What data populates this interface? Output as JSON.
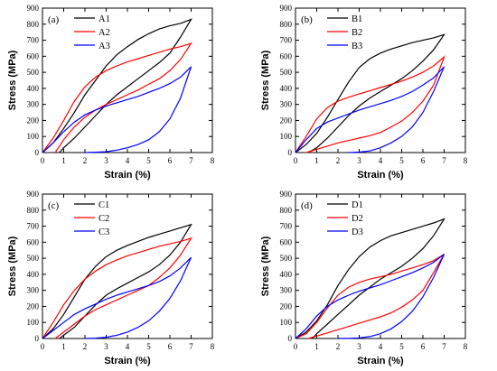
{
  "chart_data": [
    {
      "type": "line",
      "panel_label": "(a)",
      "xlabel": "Strain (%)",
      "ylabel": "Stress (MPa)",
      "xlim": [
        0,
        8
      ],
      "ylim": [
        0,
        900
      ],
      "xticks": [
        0,
        1,
        2,
        3,
        4,
        5,
        6,
        7,
        8
      ],
      "yticks": [
        0,
        100,
        200,
        300,
        400,
        500,
        600,
        700,
        800,
        900
      ],
      "legend": "top-left",
      "series": [
        {
          "name": "A1",
          "color": "#000000",
          "x": [
            0,
            0.5,
            1,
            1.5,
            2,
            2.5,
            3,
            3.5,
            4,
            4.5,
            5,
            5.5,
            6,
            6.5,
            7,
            6.5,
            6,
            5.5,
            5,
            4.5,
            4,
            3.5,
            3,
            2.5,
            2,
            1.5,
            1,
            0.8
          ],
          "y": [
            0,
            60,
            150,
            250,
            360,
            450,
            540,
            610,
            660,
            705,
            740,
            770,
            790,
            805,
            830,
            720,
            620,
            560,
            510,
            460,
            410,
            360,
            300,
            230,
            160,
            90,
            30,
            0
          ]
        },
        {
          "name": "A2",
          "color": "#ff0000",
          "x": [
            0,
            0.5,
            1,
            1.5,
            2,
            2.5,
            3,
            3.5,
            4,
            4.5,
            5,
            5.5,
            6,
            6.5,
            7,
            6.5,
            6,
            5.5,
            5,
            4.5,
            4,
            3.5,
            3,
            2.5,
            2,
            1.5,
            1,
            0.6
          ],
          "y": [
            0,
            90,
            200,
            320,
            410,
            470,
            510,
            540,
            565,
            585,
            605,
            625,
            645,
            660,
            680,
            580,
            510,
            460,
            425,
            390,
            360,
            330,
            300,
            265,
            220,
            160,
            80,
            0
          ]
        },
        {
          "name": "A3",
          "color": "#0000ff",
          "x": [
            0,
            0.5,
            1,
            1.5,
            2,
            2.5,
            3,
            3.5,
            4,
            4.5,
            5,
            5.5,
            6,
            6.5,
            7,
            6.5,
            6,
            5.5,
            5,
            4.5,
            4,
            3.5,
            3,
            2.5,
            2
          ],
          "y": [
            0,
            60,
            130,
            190,
            235,
            265,
            290,
            310,
            330,
            350,
            375,
            400,
            430,
            470,
            535,
            340,
            210,
            130,
            80,
            50,
            30,
            15,
            5,
            2,
            0
          ]
        }
      ]
    },
    {
      "type": "line",
      "panel_label": "(b)",
      "xlabel": "Strain (%)",
      "ylabel": "Stress (MPa)",
      "xlim": [
        0,
        8
      ],
      "ylim": [
        0,
        900
      ],
      "xticks": [
        0,
        1,
        2,
        3,
        4,
        5,
        6,
        7,
        8
      ],
      "yticks": [
        0,
        100,
        200,
        300,
        400,
        500,
        600,
        700,
        800,
        900
      ],
      "legend": "top-left",
      "series": [
        {
          "name": "B1",
          "color": "#000000",
          "x": [
            0,
            0.5,
            1,
            1.5,
            2,
            2.5,
            3,
            3.5,
            4,
            4.5,
            5,
            5.5,
            6,
            6.5,
            7,
            6.5,
            6,
            5.5,
            5,
            4.5,
            4,
            3.5,
            3,
            2.5,
            2,
            1.5,
            1,
            0.6
          ],
          "y": [
            0,
            50,
            120,
            220,
            330,
            440,
            530,
            585,
            620,
            645,
            665,
            685,
            700,
            715,
            735,
            640,
            570,
            510,
            460,
            420,
            380,
            340,
            290,
            230,
            160,
            90,
            30,
            0
          ]
        },
        {
          "name": "B2",
          "color": "#ff0000",
          "x": [
            0,
            0.5,
            1,
            1.5,
            2,
            2.5,
            3,
            3.5,
            4,
            4.5,
            5,
            5.5,
            6,
            6.5,
            7,
            6.5,
            6,
            5.5,
            5,
            4.5,
            4,
            3.5,
            3,
            2.5,
            2,
            1.5,
            1,
            0.5
          ],
          "y": [
            0,
            100,
            210,
            280,
            320,
            345,
            365,
            385,
            405,
            425,
            445,
            470,
            500,
            540,
            595,
            420,
            320,
            250,
            195,
            160,
            125,
            105,
            90,
            75,
            60,
            40,
            20,
            0
          ]
        },
        {
          "name": "B3",
          "color": "#0000ff",
          "x": [
            0,
            0.5,
            1,
            1.5,
            2,
            2.5,
            3,
            3.5,
            4,
            4.5,
            5,
            5.5,
            6,
            6.5,
            7,
            6.5,
            6,
            5.5,
            5,
            4.5,
            4,
            3.5,
            3,
            2.5
          ],
          "y": [
            0,
            80,
            150,
            190,
            215,
            240,
            265,
            285,
            305,
            325,
            350,
            380,
            420,
            465,
            535,
            380,
            250,
            160,
            100,
            60,
            30,
            10,
            3,
            0
          ]
        }
      ]
    },
    {
      "type": "line",
      "panel_label": "(c)",
      "xlabel": "Strain (%)",
      "ylabel": "Stress (MPa)",
      "xlim": [
        0,
        8
      ],
      "ylim": [
        0,
        900
      ],
      "xticks": [
        0,
        1,
        2,
        3,
        4,
        5,
        6,
        7,
        8
      ],
      "yticks": [
        0,
        100,
        200,
        300,
        400,
        500,
        600,
        700,
        800,
        900
      ],
      "legend": "top-left",
      "series": [
        {
          "name": "C1",
          "color": "#000000",
          "x": [
            0,
            0.5,
            1,
            1.5,
            2,
            2.5,
            3,
            3.5,
            4,
            4.5,
            5,
            5.5,
            6,
            6.5,
            7,
            6.5,
            6,
            5.5,
            5,
            4.5,
            4,
            3.5,
            3,
            2.5,
            2,
            1.5,
            1,
            0.8
          ],
          "y": [
            0,
            60,
            150,
            260,
            370,
            450,
            510,
            550,
            580,
            605,
            630,
            650,
            670,
            690,
            710,
            600,
            520,
            460,
            415,
            380,
            345,
            310,
            270,
            210,
            140,
            70,
            20,
            0
          ]
        },
        {
          "name": "C2",
          "color": "#ff0000",
          "x": [
            0,
            0.5,
            1,
            1.5,
            2,
            2.5,
            3,
            3.5,
            4,
            4.5,
            5,
            5.5,
            6,
            6.5,
            7,
            6.5,
            6,
            5.5,
            5,
            4.5,
            4,
            3.5,
            3,
            2.5,
            2,
            1.5,
            1,
            0.6
          ],
          "y": [
            0,
            100,
            210,
            300,
            370,
            420,
            460,
            490,
            515,
            535,
            555,
            575,
            590,
            605,
            625,
            520,
            440,
            380,
            330,
            300,
            270,
            240,
            210,
            180,
            140,
            90,
            40,
            0
          ]
        },
        {
          "name": "C3",
          "color": "#0000ff",
          "x": [
            0,
            0.5,
            1,
            1.5,
            2,
            2.5,
            3,
            3.5,
            4,
            4.5,
            5,
            5.5,
            6,
            6.5,
            7,
            6.5,
            6,
            5.5,
            5,
            4.5,
            4,
            3.5,
            3,
            2.5,
            2
          ],
          "y": [
            0,
            50,
            100,
            150,
            185,
            215,
            245,
            270,
            290,
            310,
            330,
            355,
            390,
            440,
            505,
            360,
            250,
            170,
            110,
            70,
            40,
            20,
            8,
            2,
            0
          ]
        }
      ]
    },
    {
      "type": "line",
      "panel_label": "(d)",
      "xlabel": "Strain (%)",
      "ylabel": "Stress (MPa)",
      "xlim": [
        0,
        8
      ],
      "ylim": [
        0,
        900
      ],
      "xticks": [
        0,
        1,
        2,
        3,
        4,
        5,
        6,
        7,
        8
      ],
      "yticks": [
        0,
        100,
        200,
        300,
        400,
        500,
        600,
        700,
        800,
        900
      ],
      "legend": "top-left",
      "series": [
        {
          "name": "D1",
          "color": "#000000",
          "x": [
            0,
            0.5,
            1,
            1.5,
            2,
            2.5,
            3,
            3.5,
            4,
            4.5,
            5,
            5.5,
            6,
            6.5,
            7,
            6.5,
            6,
            5.5,
            5,
            4.5,
            4,
            3.5,
            3,
            2.5,
            2,
            1.5,
            1,
            0.8
          ],
          "y": [
            0,
            40,
            110,
            210,
            330,
            430,
            510,
            570,
            610,
            640,
            660,
            680,
            700,
            720,
            745,
            640,
            560,
            500,
            450,
            410,
            370,
            320,
            270,
            210,
            150,
            90,
            30,
            0
          ]
        },
        {
          "name": "D2",
          "color": "#ff0000",
          "x": [
            0,
            0.5,
            1,
            1.5,
            2,
            2.5,
            3,
            3.5,
            4,
            4.5,
            5,
            5.5,
            6,
            6.5,
            7,
            6.5,
            6,
            5.5,
            5,
            4.5,
            4,
            3.5,
            3,
            2.5,
            2,
            1.5,
            1,
            0.6
          ],
          "y": [
            0,
            30,
            100,
            190,
            270,
            320,
            350,
            370,
            385,
            400,
            420,
            440,
            460,
            485,
            525,
            410,
            300,
            240,
            195,
            160,
            135,
            115,
            95,
            75,
            55,
            35,
            15,
            0
          ]
        },
        {
          "name": "D3",
          "color": "#0000ff",
          "x": [
            0,
            0.5,
            1,
            1.5,
            2,
            2.5,
            3,
            3.5,
            4,
            4.5,
            5,
            5.5,
            6,
            6.5,
            7,
            6.5,
            6,
            5.5,
            5,
            4.5,
            4,
            3.5,
            3,
            2.5,
            2
          ],
          "y": [
            0,
            60,
            140,
            200,
            240,
            270,
            295,
            315,
            335,
            360,
            385,
            410,
            440,
            475,
            525,
            380,
            260,
            170,
            105,
            60,
            30,
            12,
            4,
            1,
            0
          ]
        }
      ]
    }
  ]
}
